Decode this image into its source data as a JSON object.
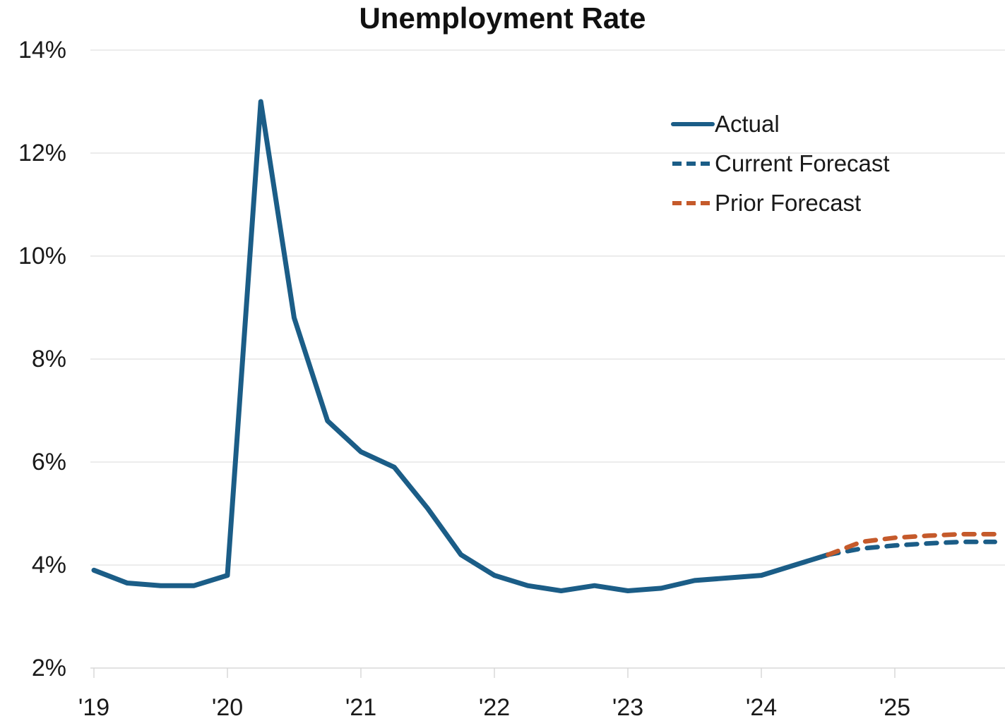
{
  "title": "Unemployment Rate",
  "colors": {
    "actual": "#1B5D87",
    "current_forecast": "#1B5D87",
    "prior_forecast": "#C55A2B",
    "grid": "#E5E5E5",
    "axis": "#D8D8D8",
    "text": "#1A1A1A"
  },
  "legend": {
    "items": [
      {
        "label": "Actual",
        "style": "solid",
        "color": "#1B5D87"
      },
      {
        "label": "Current Forecast",
        "style": "dashed",
        "color": "#1B5D87"
      },
      {
        "label": "Prior Forecast",
        "style": "dashed",
        "color": "#C55A2B"
      }
    ]
  },
  "y_axis": {
    "min": 2,
    "max": 14,
    "step": 2,
    "tick_labels": [
      "14%",
      "12%",
      "10%",
      "8%",
      "6%",
      "4%",
      "2%"
    ]
  },
  "x_axis": {
    "tick_years": [
      2019,
      2020,
      2021,
      2022,
      2023,
      2024,
      2025
    ],
    "tick_labels": [
      "'19",
      "'20",
      "'21",
      "'22",
      "'23",
      "'24",
      "'25"
    ]
  },
  "chart_data": {
    "type": "line",
    "title": "Unemployment Rate",
    "xlabel": "",
    "ylabel": "",
    "x_unit": "decimal years (quarterly points)",
    "xlim": [
      2019,
      2026
    ],
    "ylim": [
      2,
      14
    ],
    "grid": "horizontal",
    "legend_position": "upper right",
    "series": [
      {
        "name": "Actual",
        "style": "solid",
        "color": "#1B5D87",
        "x": [
          2019.0,
          2019.25,
          2019.5,
          2019.75,
          2020.0,
          2020.25,
          2020.5,
          2020.75,
          2021.0,
          2021.25,
          2021.5,
          2021.75,
          2022.0,
          2022.25,
          2022.5,
          2022.75,
          2023.0,
          2023.25,
          2023.5,
          2023.75,
          2024.0,
          2024.25,
          2024.5
        ],
        "values": [
          3.9,
          3.65,
          3.6,
          3.6,
          3.8,
          13.0,
          8.8,
          6.8,
          6.2,
          5.9,
          5.1,
          4.2,
          3.8,
          3.6,
          3.5,
          3.6,
          3.5,
          3.55,
          3.7,
          3.75,
          3.8,
          4.0,
          4.2
        ]
      },
      {
        "name": "Current Forecast",
        "style": "dashed",
        "color": "#1B5D87",
        "x": [
          2024.5,
          2024.75,
          2025.0,
          2025.25,
          2025.5,
          2025.75
        ],
        "values": [
          4.2,
          4.32,
          4.38,
          4.42,
          4.45,
          4.45
        ]
      },
      {
        "name": "Prior Forecast",
        "style": "dashed",
        "color": "#C55A2B",
        "x": [
          2024.5,
          2024.75,
          2025.0,
          2025.25,
          2025.5,
          2025.75
        ],
        "values": [
          4.2,
          4.45,
          4.53,
          4.57,
          4.6,
          4.6
        ]
      }
    ]
  }
}
